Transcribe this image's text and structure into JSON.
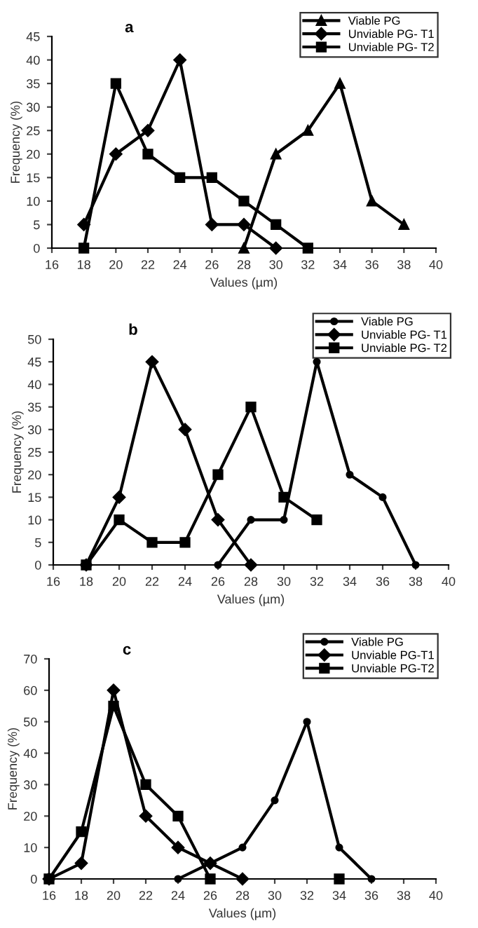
{
  "chart_data": [
    {
      "type": "line",
      "title": "a",
      "xlabel": "Values (µm)",
      "ylabel": "Frequency (%)",
      "xlim": [
        16,
        40
      ],
      "xticks": [
        16,
        18,
        20,
        22,
        24,
        26,
        28,
        30,
        32,
        34,
        36,
        38,
        40
      ],
      "ylim": [
        0,
        45
      ],
      "yticks": [
        0,
        5,
        10,
        15,
        20,
        25,
        30,
        35,
        40,
        45
      ],
      "grid": false,
      "legend": "top right",
      "line_style": "solid",
      "series": [
        {
          "name": "Viable PG",
          "color": "#000000",
          "marker": "triangle",
          "x": [
            28,
            30,
            32,
            34,
            36,
            38
          ],
          "values": [
            0,
            20,
            25,
            35,
            10,
            5
          ]
        },
        {
          "name": "Unviable PG- T1",
          "color": "#000000",
          "marker": "diamond",
          "x": [
            18,
            20,
            22,
            24,
            26,
            28,
            30
          ],
          "values": [
            5,
            20,
            25,
            40,
            5,
            5,
            0
          ]
        },
        {
          "name": "Unviable PG- T2",
          "color": "#000000",
          "marker": "square",
          "x": [
            18,
            20,
            22,
            24,
            26,
            28,
            30,
            32
          ],
          "values": [
            0,
            35,
            20,
            15,
            15,
            10,
            5,
            0
          ]
        }
      ]
    },
    {
      "type": "line",
      "title": "b",
      "xlabel": "Values (µm)",
      "ylabel": "Frequency (%)",
      "xlim": [
        16,
        40
      ],
      "xticks": [
        16,
        18,
        20,
        22,
        24,
        26,
        28,
        30,
        32,
        34,
        36,
        38,
        40
      ],
      "ylim": [
        0,
        50
      ],
      "yticks": [
        0,
        5,
        10,
        15,
        20,
        25,
        30,
        35,
        40,
        45,
        50
      ],
      "grid": false,
      "legend": "top right",
      "line_style": "solid",
      "series": [
        {
          "name": "Viable PG",
          "color": "#000000",
          "marker": "circle",
          "x": [
            26,
            28,
            30,
            32,
            34,
            36,
            38
          ],
          "values": [
            0,
            10,
            10,
            45,
            20,
            15,
            0
          ]
        },
        {
          "name": "Unviable PG- T1",
          "color": "#000000",
          "marker": "diamond",
          "x": [
            18,
            20,
            22,
            24,
            26,
            28
          ],
          "values": [
            0,
            15,
            45,
            30,
            10,
            0
          ]
        },
        {
          "name": "Unviable PG- T2",
          "color": "#000000",
          "marker": "square",
          "x": [
            18,
            20,
            22,
            24,
            26,
            28,
            30,
            32
          ],
          "values": [
            0,
            10,
            5,
            5,
            20,
            35,
            15,
            10
          ]
        }
      ]
    },
    {
      "type": "line",
      "title": "c",
      "xlabel": "Values (µm)",
      "ylabel": "Frequency (%)",
      "xlim": [
        16,
        40
      ],
      "xticks": [
        16,
        18,
        20,
        22,
        24,
        26,
        28,
        30,
        32,
        34,
        36,
        38,
        40
      ],
      "ylim": [
        0,
        70
      ],
      "yticks": [
        0,
        10,
        20,
        30,
        40,
        50,
        60,
        70
      ],
      "grid": false,
      "legend": "top right",
      "line_style": "solid",
      "series": [
        {
          "name": "Viable PG",
          "color": "#000000",
          "marker": "circle",
          "x": [
            24,
            26,
            28,
            30,
            32,
            34,
            36
          ],
          "values": [
            0,
            5,
            10,
            25,
            50,
            10,
            0
          ]
        },
        {
          "name": "Unviable PG-T1",
          "color": "#000000",
          "marker": "diamond",
          "x": [
            16,
            18,
            20,
            22,
            24,
            26,
            28
          ],
          "values": [
            0,
            5,
            60,
            20,
            10,
            5,
            0
          ]
        },
        {
          "name": "Unviable PG-T2",
          "color": "#000000",
          "marker": "square",
          "x": [
            16,
            18,
            20,
            22,
            24,
            26,
            28,
            30,
            32,
            34
          ],
          "values": [
            0,
            15,
            55,
            30,
            20,
            0,
            null,
            null,
            null,
            0
          ]
        }
      ]
    }
  ]
}
